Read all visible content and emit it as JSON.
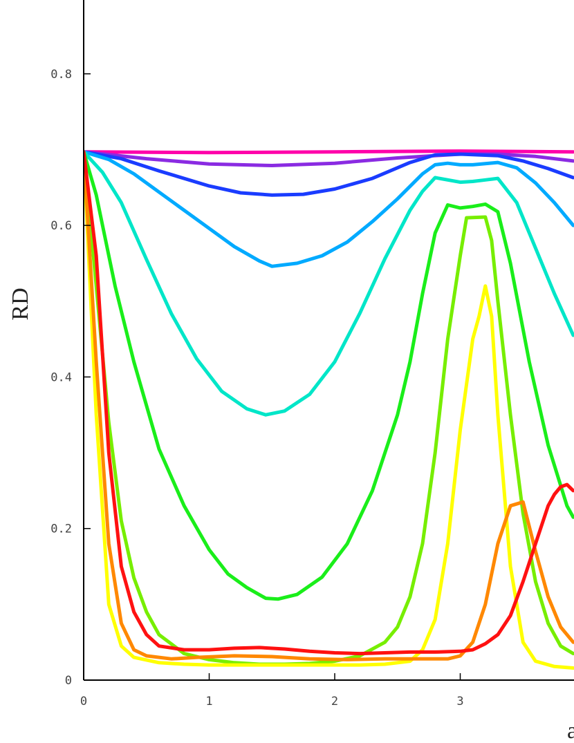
{
  "chart_data": {
    "type": "line",
    "title": "",
    "xlabel": "a",
    "ylabel": "RD",
    "xlim": [
      0,
      3.9
    ],
    "ylim": [
      0,
      0.9
    ],
    "grid": false,
    "legend": "none",
    "x_ticks": [
      "0",
      "1",
      "2",
      "3"
    ],
    "y_ticks": [
      "0",
      "0.2",
      "0.4",
      "0.6",
      "0.8"
    ],
    "series": [
      {
        "color": "#ff00aa",
        "x": [
          0,
          1,
          2,
          3,
          3.9
        ],
        "y": [
          0.697,
          0.696,
          0.697,
          0.698,
          0.697
        ]
      },
      {
        "color": "#8a2be2",
        "x": [
          0,
          0.5,
          1,
          1.5,
          2,
          2.5,
          3,
          3.3,
          3.6,
          3.9
        ],
        "y": [
          0.697,
          0.688,
          0.681,
          0.679,
          0.682,
          0.689,
          0.694,
          0.694,
          0.691,
          0.685
        ]
      },
      {
        "color": "#1a3cff",
        "x": [
          0,
          0.3,
          0.6,
          1,
          1.25,
          1.5,
          1.75,
          2,
          2.3,
          2.6,
          2.8,
          3,
          3.3,
          3.5,
          3.7,
          3.9
        ],
        "y": [
          0.697,
          0.688,
          0.672,
          0.652,
          0.643,
          0.64,
          0.641,
          0.648,
          0.662,
          0.683,
          0.693,
          0.694,
          0.692,
          0.685,
          0.675,
          0.663
        ]
      },
      {
        "color": "#00aaff",
        "x": [
          0,
          0.2,
          0.4,
          0.6,
          0.8,
          1,
          1.2,
          1.4,
          1.5,
          1.7,
          1.9,
          2.1,
          2.3,
          2.5,
          2.7,
          2.8,
          2.9,
          3.0,
          3.1,
          3.3,
          3.45,
          3.6,
          3.75,
          3.9
        ],
        "y": [
          0.697,
          0.687,
          0.668,
          0.644,
          0.62,
          0.596,
          0.572,
          0.553,
          0.546,
          0.55,
          0.56,
          0.578,
          0.605,
          0.635,
          0.668,
          0.68,
          0.682,
          0.68,
          0.68,
          0.683,
          0.676,
          0.656,
          0.63,
          0.6
        ]
      },
      {
        "color": "#00e6c8",
        "x": [
          0,
          0.15,
          0.3,
          0.5,
          0.7,
          0.9,
          1.1,
          1.3,
          1.45,
          1.6,
          1.8,
          2.0,
          2.2,
          2.4,
          2.6,
          2.7,
          2.8,
          3.0,
          3.1,
          3.2,
          3.3,
          3.45,
          3.6,
          3.75,
          3.9
        ],
        "y": [
          0.697,
          0.67,
          0.63,
          0.555,
          0.483,
          0.424,
          0.381,
          0.358,
          0.35,
          0.355,
          0.377,
          0.42,
          0.484,
          0.556,
          0.62,
          0.645,
          0.663,
          0.657,
          0.658,
          0.66,
          0.662,
          0.63,
          0.57,
          0.51,
          0.455
        ]
      },
      {
        "color": "#1aee1a",
        "x": [
          0,
          0.1,
          0.25,
          0.4,
          0.6,
          0.8,
          1.0,
          1.15,
          1.3,
          1.45,
          1.55,
          1.7,
          1.9,
          2.1,
          2.3,
          2.5,
          2.6,
          2.7,
          2.8,
          2.9,
          3.0,
          3.1,
          3.2,
          3.3,
          3.4,
          3.55,
          3.7,
          3.85,
          3.9
        ],
        "y": [
          0.697,
          0.64,
          0.52,
          0.42,
          0.305,
          0.23,
          0.172,
          0.14,
          0.122,
          0.108,
          0.107,
          0.113,
          0.136,
          0.18,
          0.25,
          0.35,
          0.42,
          0.51,
          0.59,
          0.627,
          0.623,
          0.625,
          0.628,
          0.618,
          0.55,
          0.42,
          0.31,
          0.23,
          0.215
        ]
      },
      {
        "color": "#77ee00",
        "x": [
          0,
          0.1,
          0.2,
          0.3,
          0.4,
          0.5,
          0.6,
          0.8,
          1.0,
          1.2,
          1.4,
          1.6,
          1.8,
          2.0,
          2.2,
          2.4,
          2.5,
          2.6,
          2.7,
          2.8,
          2.9,
          3.0,
          3.05,
          3.2,
          3.25,
          3.3,
          3.4,
          3.5,
          3.6,
          3.7,
          3.8,
          3.9
        ],
        "y": [
          0.697,
          0.52,
          0.34,
          0.21,
          0.135,
          0.09,
          0.06,
          0.035,
          0.027,
          0.023,
          0.021,
          0.021,
          0.022,
          0.025,
          0.032,
          0.05,
          0.07,
          0.11,
          0.18,
          0.3,
          0.45,
          0.56,
          0.61,
          0.611,
          0.58,
          0.5,
          0.35,
          0.22,
          0.13,
          0.075,
          0.045,
          0.035
        ]
      },
      {
        "color": "#ffff00",
        "x": [
          0,
          0.1,
          0.2,
          0.3,
          0.4,
          0.6,
          0.8,
          1.0,
          1.2,
          1.4,
          1.6,
          1.8,
          2.0,
          2.2,
          2.4,
          2.6,
          2.7,
          2.8,
          2.9,
          3.0,
          3.1,
          3.15,
          3.2,
          3.25,
          3.3,
          3.4,
          3.5,
          3.6,
          3.75,
          3.9
        ],
        "y": [
          0.697,
          0.35,
          0.1,
          0.045,
          0.03,
          0.023,
          0.021,
          0.02,
          0.02,
          0.02,
          0.02,
          0.02,
          0.02,
          0.02,
          0.021,
          0.025,
          0.04,
          0.08,
          0.18,
          0.33,
          0.45,
          0.48,
          0.52,
          0.48,
          0.35,
          0.15,
          0.05,
          0.025,
          0.018,
          0.016
        ]
      },
      {
        "color": "#ff8800",
        "x": [
          0,
          0.1,
          0.2,
          0.3,
          0.4,
          0.5,
          0.7,
          0.9,
          1.2,
          1.5,
          1.8,
          2.1,
          2.4,
          2.7,
          2.9,
          3.0,
          3.1,
          3.2,
          3.3,
          3.4,
          3.5,
          3.6,
          3.7,
          3.8,
          3.9
        ],
        "y": [
          0.697,
          0.42,
          0.18,
          0.075,
          0.04,
          0.032,
          0.028,
          0.03,
          0.032,
          0.031,
          0.028,
          0.027,
          0.028,
          0.028,
          0.028,
          0.032,
          0.05,
          0.1,
          0.18,
          0.23,
          0.235,
          0.17,
          0.11,
          0.07,
          0.05
        ]
      },
      {
        "color": "#ff1111",
        "x": [
          0,
          0.1,
          0.2,
          0.3,
          0.4,
          0.5,
          0.6,
          0.8,
          1.0,
          1.2,
          1.4,
          1.6,
          1.8,
          2.0,
          2.2,
          2.4,
          2.6,
          2.8,
          3.0,
          3.1,
          3.2,
          3.3,
          3.4,
          3.5,
          3.6,
          3.7,
          3.75,
          3.8,
          3.85,
          3.9
        ],
        "y": [
          0.697,
          0.56,
          0.3,
          0.15,
          0.09,
          0.06,
          0.045,
          0.04,
          0.04,
          0.042,
          0.043,
          0.041,
          0.038,
          0.036,
          0.035,
          0.036,
          0.037,
          0.037,
          0.038,
          0.04,
          0.048,
          0.06,
          0.085,
          0.13,
          0.18,
          0.23,
          0.245,
          0.255,
          0.258,
          0.25
        ]
      }
    ]
  }
}
